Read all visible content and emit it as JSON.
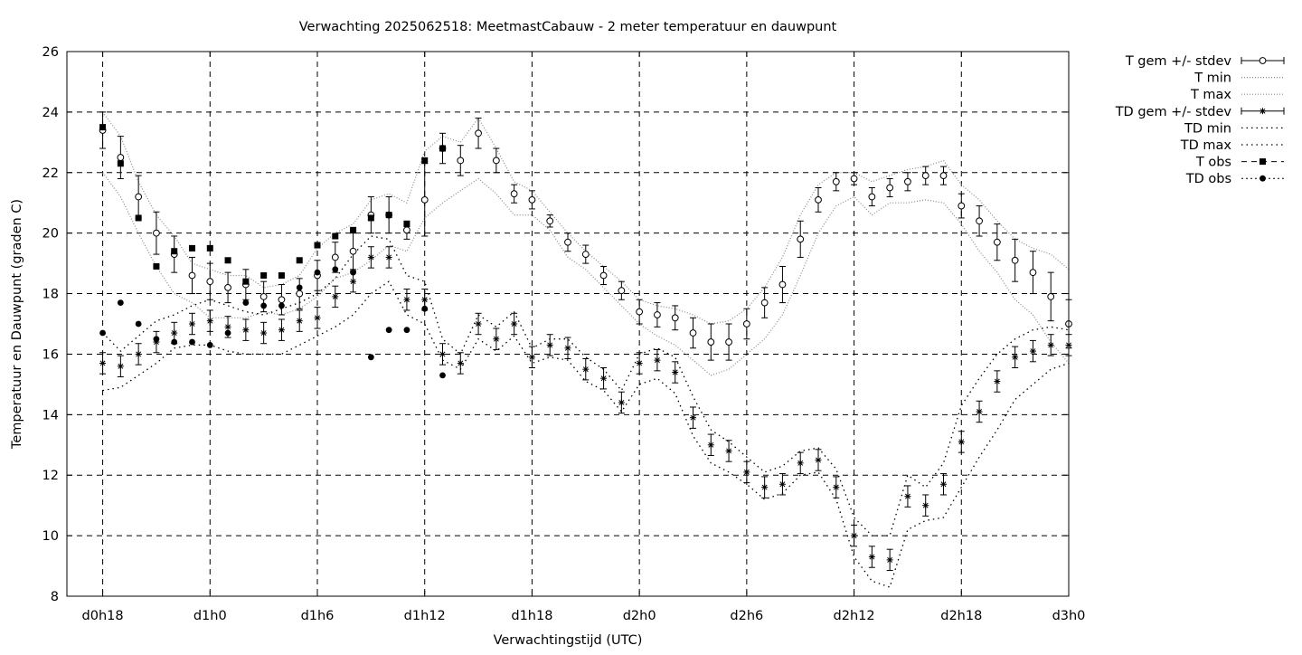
{
  "chart_data": {
    "type": "line",
    "title": "Verwachting 2025062518: MeetmastCabauw - 2 meter temperatuur en dauwpunt",
    "xlabel": "Verwachtingstijd (UTC)",
    "ylabel": "Temperatuur en Dauwpunt (graden C)",
    "ylim": [
      8,
      26
    ],
    "xlim": [
      -2,
      54
    ],
    "grid": true,
    "legend_position": "right",
    "x_ticks": [
      {
        "x": 0,
        "label": "d0h18"
      },
      {
        "x": 6,
        "label": "d1h0"
      },
      {
        "x": 12,
        "label": "d1h6"
      },
      {
        "x": 18,
        "label": "d1h12"
      },
      {
        "x": 24,
        "label": "d1h18"
      },
      {
        "x": 30,
        "label": "d2h0"
      },
      {
        "x": 36,
        "label": "d2h6"
      },
      {
        "x": 42,
        "label": "d2h12"
      },
      {
        "x": 48,
        "label": "d2h18"
      },
      {
        "x": 54,
        "label": "d3h0"
      }
    ],
    "y_ticks": [
      8,
      10,
      12,
      14,
      16,
      18,
      20,
      22,
      24,
      26
    ],
    "x": [
      0,
      1,
      2,
      3,
      4,
      5,
      6,
      7,
      8,
      9,
      10,
      11,
      12,
      13,
      14,
      15,
      16,
      17,
      18,
      19,
      20,
      21,
      22,
      23,
      24,
      25,
      26,
      27,
      28,
      29,
      30,
      31,
      32,
      33,
      34,
      35,
      36,
      37,
      38,
      39,
      40,
      41,
      42,
      43,
      44,
      45,
      46,
      47,
      48,
      49,
      50,
      51,
      52,
      53,
      54
    ],
    "series": [
      {
        "name": "T gem +/- stdev",
        "marker": "open-circle",
        "values": [
          23.4,
          22.5,
          21.2,
          20.0,
          19.3,
          18.6,
          18.4,
          18.2,
          18.3,
          17.9,
          17.8,
          18.0,
          18.6,
          19.2,
          19.4,
          20.6,
          20.6,
          20.1,
          21.1,
          22.8,
          22.4,
          23.3,
          22.4,
          21.3,
          21.1,
          20.4,
          19.7,
          19.3,
          18.6,
          18.1,
          17.4,
          17.3,
          17.2,
          16.7,
          16.4,
          16.4,
          17.0,
          17.7,
          18.3,
          19.8,
          21.1,
          21.7,
          21.8,
          21.2,
          21.5,
          21.7,
          21.9,
          21.9,
          20.9,
          20.4,
          19.7,
          19.1,
          18.7,
          17.9,
          17.0
        ],
        "stdev": [
          0.6,
          0.7,
          0.7,
          0.7,
          0.6,
          0.6,
          0.6,
          0.5,
          0.5,
          0.5,
          0.5,
          0.5,
          0.5,
          0.5,
          0.6,
          0.6,
          0.6,
          0.3,
          1.2,
          0.5,
          0.5,
          0.5,
          0.4,
          0.3,
          0.3,
          0.2,
          0.3,
          0.3,
          0.3,
          0.3,
          0.4,
          0.4,
          0.4,
          0.5,
          0.6,
          0.6,
          0.5,
          0.5,
          0.6,
          0.6,
          0.4,
          0.3,
          0.2,
          0.3,
          0.3,
          0.3,
          0.3,
          0.3,
          0.4,
          0.5,
          0.6,
          0.7,
          0.7,
          0.8,
          0.8
        ]
      },
      {
        "name": "T min",
        "line": "dotted",
        "values": [
          22.0,
          21.2,
          20.0,
          18.9,
          18.0,
          17.7,
          17.2,
          17.2,
          17.2,
          17.4,
          17.3,
          17.5,
          17.9,
          18.5,
          18.7,
          19.1,
          19.6,
          19.4,
          20.5,
          21.0,
          21.4,
          21.8,
          21.3,
          20.6,
          20.6,
          20.1,
          19.2,
          18.8,
          18.2,
          17.6,
          17.0,
          16.6,
          16.3,
          15.8,
          15.3,
          15.5,
          16.0,
          16.5,
          17.3,
          18.6,
          20.0,
          20.9,
          21.2,
          20.6,
          21.0,
          21.0,
          21.1,
          21.0,
          20.3,
          19.4,
          18.7,
          17.8,
          17.3,
          16.4,
          15.7
        ]
      },
      {
        "name": "T max",
        "line": "dotted",
        "values": [
          24.0,
          23.2,
          21.7,
          20.6,
          19.9,
          19.0,
          18.8,
          18.6,
          18.6,
          18.2,
          18.3,
          18.6,
          19.5,
          20.0,
          20.3,
          21.1,
          21.3,
          21.0,
          22.7,
          23.2,
          23.0,
          23.8,
          22.8,
          21.7,
          21.4,
          20.7,
          20.0,
          19.4,
          18.9,
          18.4,
          17.8,
          17.6,
          17.5,
          17.3,
          17.0,
          17.1,
          17.5,
          18.2,
          19.2,
          20.6,
          21.6,
          22.0,
          22.0,
          21.7,
          21.9,
          22.1,
          22.2,
          22.4,
          21.6,
          21.1,
          20.4,
          19.8,
          19.5,
          19.3,
          18.8
        ]
      },
      {
        "name": "TD gem +/- stdev",
        "marker": "asterisk",
        "values": [
          15.7,
          15.6,
          16.0,
          16.4,
          16.7,
          17.0,
          17.1,
          16.9,
          16.8,
          16.7,
          16.8,
          17.1,
          17.2,
          17.9,
          18.4,
          19.2,
          19.2,
          17.8,
          17.8,
          16.0,
          15.7,
          17.0,
          16.5,
          17.0,
          15.9,
          16.3,
          16.2,
          15.5,
          15.2,
          14.4,
          15.7,
          15.8,
          15.4,
          13.9,
          13.0,
          12.8,
          12.1,
          11.6,
          11.7,
          12.4,
          12.5,
          11.6,
          10.0,
          9.3,
          9.2,
          11.3,
          11.0,
          11.7,
          13.1,
          14.1,
          15.1,
          15.9,
          16.1,
          16.3,
          16.3
        ]
      },
      {
        "name": "TD min",
        "line": "dotted",
        "values": [
          14.8,
          14.9,
          15.3,
          15.7,
          16.2,
          16.3,
          16.3,
          16.1,
          16.0,
          16.0,
          16.0,
          16.3,
          16.6,
          16.9,
          17.3,
          18.0,
          18.4,
          17.3,
          17.0,
          15.8,
          15.5,
          16.5,
          16.1,
          16.6,
          15.7,
          15.9,
          15.8,
          15.1,
          14.8,
          14.1,
          15.0,
          15.2,
          14.7,
          13.3,
          12.4,
          12.1,
          11.7,
          11.2,
          11.4,
          12.0,
          12.1,
          11.2,
          9.3,
          8.5,
          8.3,
          10.2,
          10.5,
          10.6,
          11.6,
          12.6,
          13.5,
          14.5,
          15.0,
          15.5,
          15.7
        ]
      },
      {
        "name": "TD max",
        "line": "dotted",
        "values": [
          16.7,
          16.1,
          16.6,
          17.1,
          17.3,
          17.6,
          17.8,
          17.6,
          17.4,
          17.3,
          17.5,
          17.7,
          18.0,
          18.5,
          19.3,
          19.9,
          19.8,
          18.6,
          18.4,
          16.5,
          16.0,
          17.3,
          16.9,
          17.4,
          16.2,
          16.5,
          16.5,
          15.9,
          15.5,
          14.8,
          16.0,
          16.2,
          15.9,
          14.6,
          13.5,
          13.1,
          12.6,
          12.1,
          12.3,
          12.8,
          12.9,
          12.2,
          10.6,
          10.0,
          10.0,
          12.0,
          11.6,
          12.4,
          14.3,
          15.2,
          16.0,
          16.5,
          16.8,
          16.9,
          16.8
        ]
      },
      {
        "name": "T obs",
        "marker": "filled-square",
        "x": [
          0,
          1,
          2,
          3,
          4,
          5,
          6,
          7,
          8,
          9,
          10,
          11,
          12,
          13,
          14,
          15,
          16,
          17,
          18,
          19
        ],
        "values": [
          23.5,
          22.3,
          20.5,
          18.9,
          19.4,
          19.5,
          19.5,
          19.1,
          18.4,
          18.6,
          18.6,
          19.1,
          19.6,
          19.9,
          20.1,
          20.5,
          20.6,
          20.3,
          22.4,
          22.8
        ]
      },
      {
        "name": "TD obs",
        "marker": "filled-circle",
        "x": [
          0,
          1,
          2,
          3,
          4,
          5,
          6,
          7,
          8,
          9,
          10,
          11,
          12,
          13,
          14,
          15,
          16,
          17,
          18,
          19
        ],
        "values": [
          16.7,
          17.7,
          17.0,
          16.5,
          16.4,
          16.4,
          16.3,
          16.7,
          17.7,
          17.6,
          17.6,
          18.2,
          18.7,
          18.8,
          18.7,
          15.9,
          16.8,
          16.8,
          17.5,
          15.3
        ]
      }
    ]
  }
}
